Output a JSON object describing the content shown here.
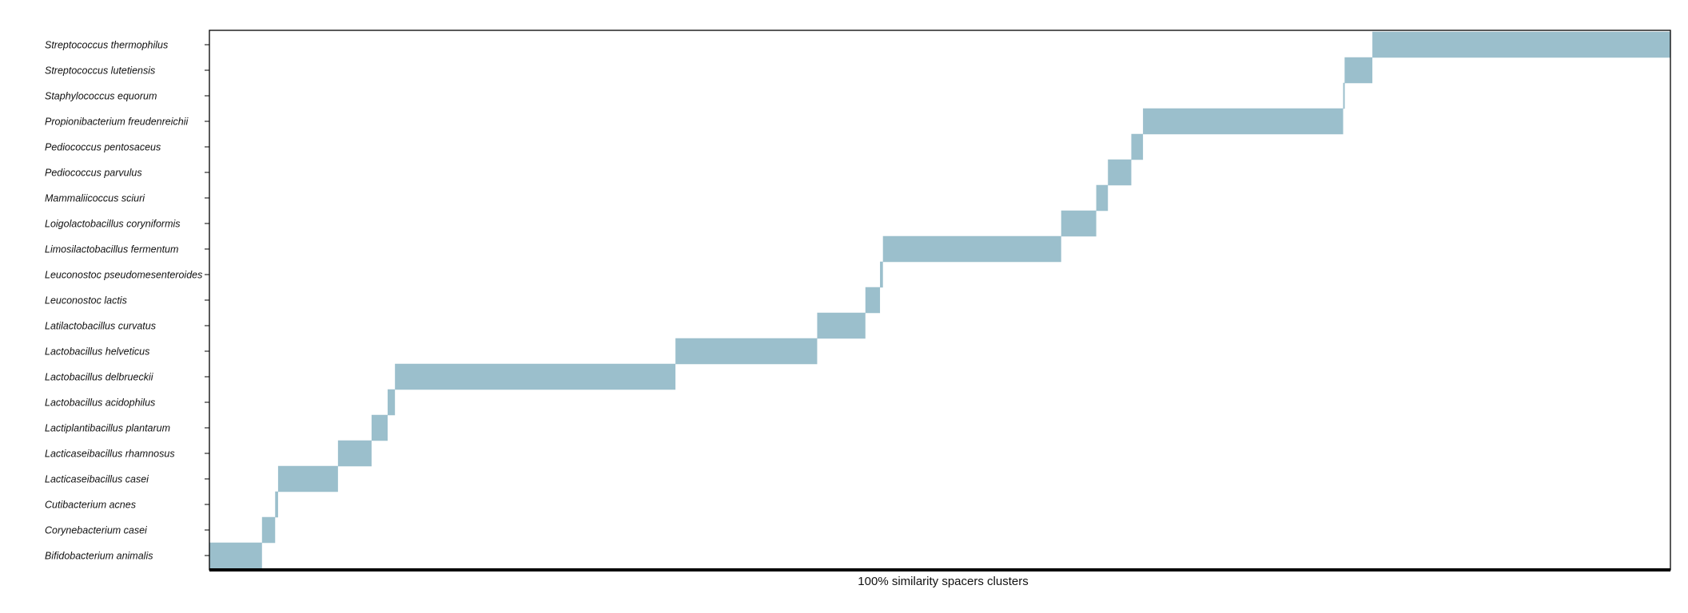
{
  "chart_data": {
    "type": "bar",
    "orientation": "horizontal-ranges",
    "title": "",
    "xlabel": "100% similarity spacers clusters",
    "ylabel": "",
    "bar_color": "#9bbfcc",
    "grid": false,
    "legend": "none",
    "xlim": [
      0,
      1000
    ],
    "categories": [
      "Bifidobacterium animalis",
      "Corynebacterium casei",
      "Cutibacterium acnes",
      "Lacticaseibacillus casei",
      "Lacticaseibacillus rhamnosus",
      "Lactiplantibacillus plantarum",
      "Lactobacillus acidophilus",
      "Lactobacillus delbrueckii",
      "Lactobacillus helveticus",
      "Latilactobacillus curvatus",
      "Leuconostoc lactis",
      "Leuconostoc pseudomesenteroides",
      "Limosilactobacillus fermentum",
      "Loigolactobacillus coryniformis",
      "Mammaliicoccus sciuri",
      "Pediococcus parvulus",
      "Pediococcus pentosaceus",
      "Propionibacterium freudenreichii",
      "Staphylococcus equorum",
      "Streptococcus lutetiensis",
      "Streptococcus thermophilus"
    ],
    "ranges": [
      [
        0,
        36
      ],
      [
        36,
        45
      ],
      [
        45,
        47
      ],
      [
        47,
        88
      ],
      [
        88,
        111
      ],
      [
        111,
        122
      ],
      [
        122,
        127
      ],
      [
        127,
        319
      ],
      [
        319,
        416
      ],
      [
        416,
        449
      ],
      [
        449,
        459
      ],
      [
        459,
        461
      ],
      [
        461,
        583
      ],
      [
        583,
        607
      ],
      [
        607,
        615
      ],
      [
        615,
        631
      ],
      [
        631,
        639
      ],
      [
        639,
        776
      ],
      [
        776,
        777
      ],
      [
        777,
        796
      ],
      [
        796,
        1000
      ]
    ]
  }
}
